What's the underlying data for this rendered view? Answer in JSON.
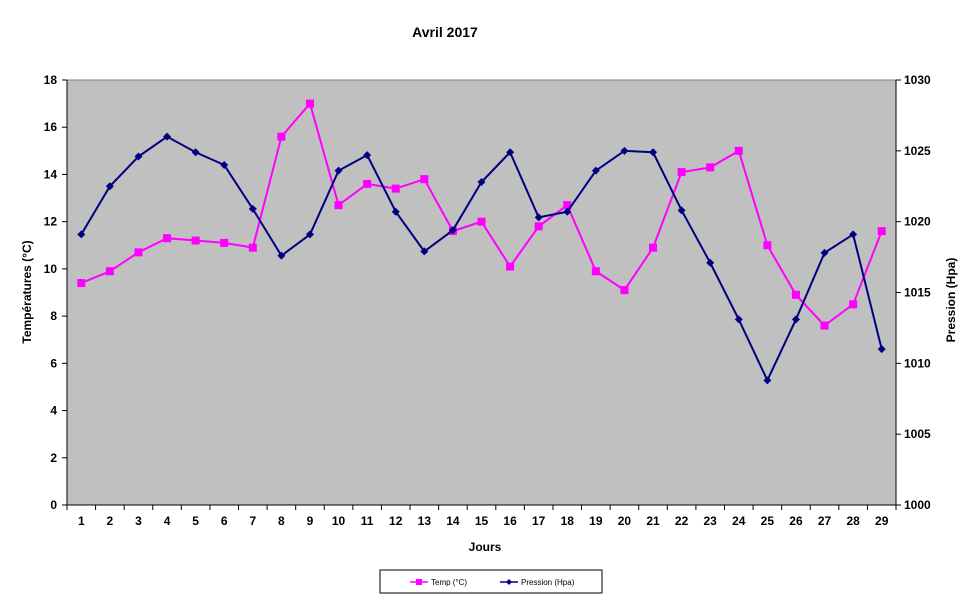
{
  "chart_data": {
    "type": "line",
    "title": "Avril 2017",
    "xlabel": "Jours",
    "ylabel_left": "Températures (°C)",
    "ylabel_right": "Pression (Hpa)",
    "categories": [
      "1",
      "2",
      "3",
      "4",
      "5",
      "6",
      "7",
      "8",
      "9",
      "10",
      "11",
      "12",
      "13",
      "14",
      "15",
      "16",
      "17",
      "18",
      "19",
      "20",
      "21",
      "22",
      "23",
      "24",
      "25",
      "26",
      "27",
      "28",
      "29"
    ],
    "ylim_left": [
      0,
      18
    ],
    "ylim_right": [
      1000,
      1030
    ],
    "yticks_left": [
      "0",
      "2",
      "4",
      "6",
      "8",
      "10",
      "12",
      "14",
      "16",
      "18"
    ],
    "yticks_right": [
      "1000",
      "1005",
      "1010",
      "1015",
      "1020",
      "1025",
      "1030"
    ],
    "grid": false,
    "plot_background": "#c0c0c0",
    "legend_position": "bottom",
    "series": [
      {
        "name": "Temp (°C)",
        "axis": "left",
        "color": "#ff00ff",
        "marker": "square",
        "values": [
          9.4,
          9.9,
          10.7,
          11.3,
          11.2,
          11.1,
          10.9,
          15.6,
          17.0,
          12.7,
          13.6,
          13.4,
          13.8,
          11.6,
          12.0,
          10.1,
          11.8,
          12.7,
          9.9,
          9.1,
          10.9,
          14.1,
          14.3,
          15.0,
          11.0,
          8.9,
          7.6,
          8.5,
          11.6
        ]
      },
      {
        "name": "Pression (Hpa)",
        "axis": "right",
        "color": "#000080",
        "marker": "diamond",
        "values": [
          1019.1,
          1022.5,
          1024.6,
          1026.0,
          1024.9,
          1024.0,
          1020.9,
          1017.6,
          1019.1,
          1023.6,
          1024.7,
          1020.7,
          1017.9,
          1019.4,
          1022.8,
          1024.9,
          1020.3,
          1020.7,
          1023.6,
          1025.0,
          1024.9,
          1020.8,
          1017.1,
          1013.1,
          1008.8,
          1013.1,
          1017.8,
          1019.1,
          1011.0
        ]
      }
    ]
  }
}
